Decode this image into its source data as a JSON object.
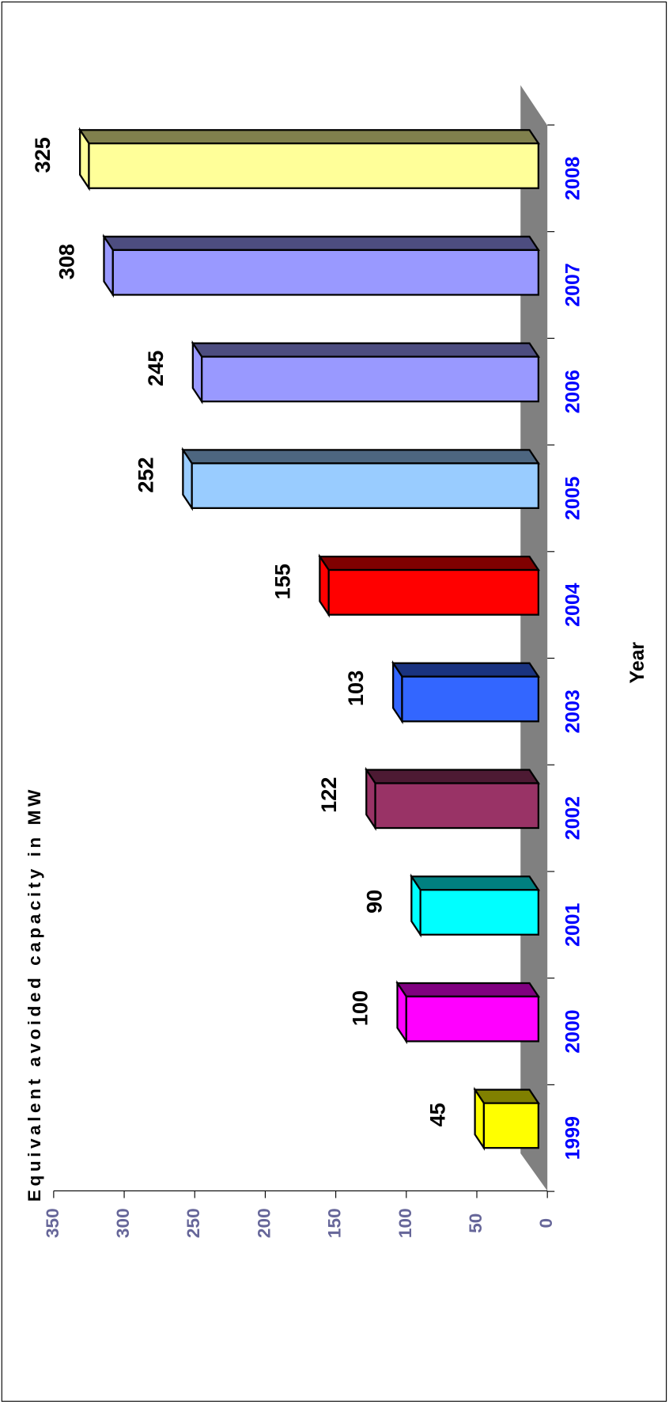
{
  "chart_data": {
    "type": "bar3d",
    "x_label": "Year",
    "y_label": "Equivalent avoided capacity in MW",
    "categories": [
      "1999",
      "2000",
      "2001",
      "2002",
      "2003",
      "2004",
      "2005",
      "2006",
      "2007",
      "2008"
    ],
    "values": [
      45,
      100,
      90,
      122,
      103,
      155,
      252,
      245,
      308,
      325
    ],
    "colors": [
      "#ffff00",
      "#ff00ff",
      "#00ffff",
      "#993366",
      "#3366ff",
      "#ff0000",
      "#99ccff",
      "#9999ff",
      "#9999ff",
      "#ffff99"
    ],
    "ylim": [
      0,
      350
    ],
    "yticks": [
      0,
      50,
      100,
      150,
      200,
      250,
      300,
      350
    ]
  }
}
